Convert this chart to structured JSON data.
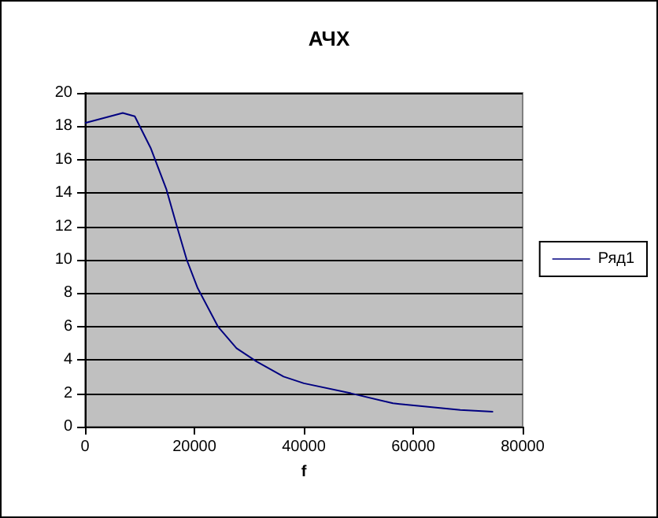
{
  "chart_data": {
    "type": "line",
    "title": "АЧХ",
    "xlabel": "f",
    "series": [
      {
        "name": "Ряд1",
        "color": "#000080",
        "x": [
          0,
          6900,
          9100,
          12000,
          14900,
          16800,
          18600,
          20600,
          24300,
          27700,
          31400,
          36300,
          40000,
          48600,
          56300,
          68600,
          74600
        ],
        "values": [
          18.2,
          18.8,
          18.6,
          16.7,
          14.2,
          12.0,
          10.0,
          8.3,
          6.0,
          4.7,
          3.9,
          3.0,
          2.6,
          2.0,
          1.4,
          1.0,
          0.9
        ]
      }
    ],
    "xlim": [
      0,
      80000
    ],
    "xticks": [
      0,
      20000,
      40000,
      60000,
      80000
    ],
    "ylim": [
      0,
      20
    ],
    "yticks": [
      0,
      2,
      4,
      6,
      8,
      10,
      12,
      14,
      16,
      18,
      20
    ],
    "grid": "y",
    "legend": "right",
    "marker": "none",
    "line_style": "solid"
  }
}
